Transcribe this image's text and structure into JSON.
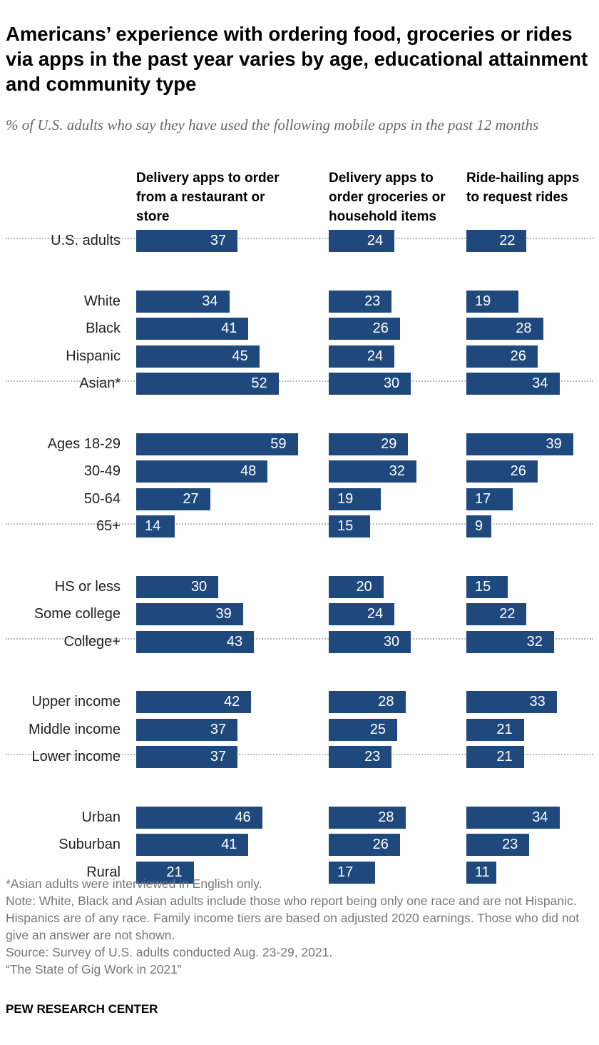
{
  "title": "Americans’ experience with ordering food, groceries or rides via apps in the past year varies by age, educational attainment and community type",
  "subtitle": "% of U.S. adults who say they have used the following mobile apps in the past 12 months",
  "chart_data": {
    "type": "bar",
    "orientation": "horizontal",
    "bar_color": "#1f497d",
    "series": [
      {
        "name": "Delivery apps to order from a restaurant or store",
        "values": [
          37,
          34,
          41,
          45,
          52,
          59,
          48,
          27,
          14,
          30,
          39,
          43,
          42,
          37,
          37,
          46,
          41,
          21
        ]
      },
      {
        "name": "Delivery apps to order groceries or household items",
        "values": [
          24,
          23,
          26,
          24,
          30,
          29,
          32,
          19,
          15,
          20,
          24,
          30,
          28,
          25,
          23,
          28,
          26,
          17
        ]
      },
      {
        "name": "Ride-hailing apps to request rides",
        "values": [
          22,
          19,
          28,
          26,
          34,
          39,
          26,
          17,
          9,
          15,
          22,
          32,
          33,
          21,
          21,
          34,
          23,
          11
        ]
      }
    ],
    "categories": [
      "U.S. adults",
      "White",
      "Black",
      "Hispanic",
      "Asian*",
      "Ages 18-29",
      "30-49",
      "50-64",
      "65+",
      "HS or less",
      "Some college",
      "College+",
      "Upper income",
      "Middle income",
      "Lower income",
      "Urban",
      "Suburban",
      "Rural"
    ],
    "groups": [
      [
        0
      ],
      [
        1,
        2,
        3,
        4
      ],
      [
        5,
        6,
        7,
        8
      ],
      [
        9,
        10,
        11
      ],
      [
        12,
        13,
        14
      ],
      [
        15,
        16,
        17
      ]
    ]
  },
  "notes": [
    "*Asian adults were interviewed in English only.",
    "Note: White, Black and Asian adults include those who report being only one race and are not Hispanic. Hispanics are of any race. Family income tiers are based on adjusted 2020 earnings. Those who did not give an answer are not shown.",
    "Source: Survey of U.S. adults conducted Aug. 23-29, 2021.",
    "“The State of Gig Work in 2021”"
  ],
  "logo": "PEW RESEARCH CENTER"
}
